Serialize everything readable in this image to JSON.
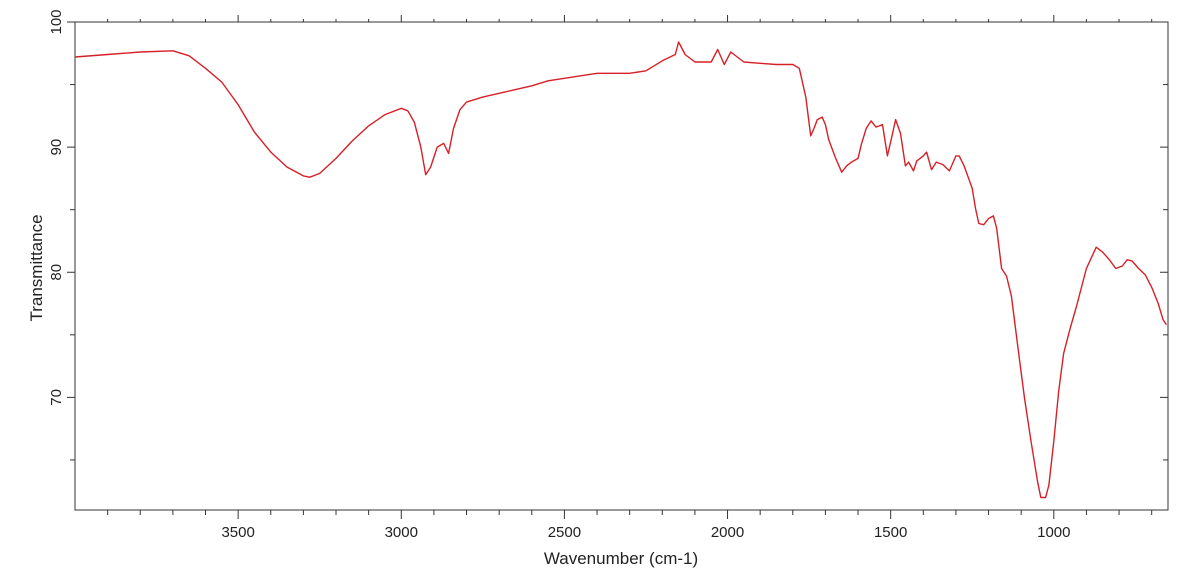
{
  "chart_data": {
    "type": "line",
    "title": "",
    "xlabel": "Wavenumber (cm-1)",
    "ylabel": "Transmittance",
    "x_reversed": true,
    "xlim": [
      4000,
      650
    ],
    "ylim": [
      61,
      100
    ],
    "xticks": [
      3500,
      3000,
      2500,
      2000,
      1500,
      1000
    ],
    "xtick_labels": [
      "3500",
      "3000",
      "2500",
      "2000",
      "1500",
      "1000"
    ],
    "yticks": [
      100,
      90,
      80,
      70
    ],
    "ytick_labels": [
      "100",
      "90",
      "80",
      "70"
    ],
    "grid": false,
    "legend": "none",
    "series": [
      {
        "color": "#d62027",
        "points": [
          [
            4000,
            97.2
          ],
          [
            3900,
            97.4
          ],
          [
            3800,
            97.6
          ],
          [
            3700,
            97.7
          ],
          [
            3650,
            97.3
          ],
          [
            3600,
            96.3
          ],
          [
            3550,
            95.2
          ],
          [
            3500,
            93.4
          ],
          [
            3450,
            91.2
          ],
          [
            3400,
            89.6
          ],
          [
            3350,
            88.4
          ],
          [
            3300,
            87.7
          ],
          [
            3280,
            87.6
          ],
          [
            3250,
            87.9
          ],
          [
            3200,
            89.1
          ],
          [
            3150,
            90.5
          ],
          [
            3100,
            91.7
          ],
          [
            3050,
            92.6
          ],
          [
            3000,
            93.1
          ],
          [
            2980,
            92.9
          ],
          [
            2960,
            92.0
          ],
          [
            2940,
            90.0
          ],
          [
            2925,
            87.8
          ],
          [
            2910,
            88.4
          ],
          [
            2890,
            90.0
          ],
          [
            2870,
            90.3
          ],
          [
            2855,
            89.5
          ],
          [
            2840,
            91.5
          ],
          [
            2820,
            93.0
          ],
          [
            2800,
            93.6
          ],
          [
            2750,
            94.0
          ],
          [
            2700,
            94.3
          ],
          [
            2650,
            94.6
          ],
          [
            2600,
            94.9
          ],
          [
            2550,
            95.3
          ],
          [
            2500,
            95.5
          ],
          [
            2450,
            95.7
          ],
          [
            2400,
            95.9
          ],
          [
            2300,
            95.9
          ],
          [
            2250,
            96.1
          ],
          [
            2200,
            96.9
          ],
          [
            2160,
            97.4
          ],
          [
            2150,
            98.4
          ],
          [
            2130,
            97.4
          ],
          [
            2100,
            96.8
          ],
          [
            2050,
            96.8
          ],
          [
            2030,
            97.8
          ],
          [
            2010,
            96.6
          ],
          [
            2000,
            97.1
          ],
          [
            1990,
            97.6
          ],
          [
            1970,
            97.2
          ],
          [
            1950,
            96.8
          ],
          [
            1900,
            96.7
          ],
          [
            1850,
            96.6
          ],
          [
            1800,
            96.6
          ],
          [
            1780,
            96.3
          ],
          [
            1760,
            94.0
          ],
          [
            1745,
            90.9
          ],
          [
            1735,
            91.5
          ],
          [
            1725,
            92.2
          ],
          [
            1710,
            92.4
          ],
          [
            1700,
            91.8
          ],
          [
            1690,
            90.6
          ],
          [
            1670,
            89.2
          ],
          [
            1650,
            88.0
          ],
          [
            1635,
            88.5
          ],
          [
            1620,
            88.8
          ],
          [
            1600,
            89.1
          ],
          [
            1590,
            90.2
          ],
          [
            1575,
            91.5
          ],
          [
            1560,
            92.1
          ],
          [
            1545,
            91.6
          ],
          [
            1525,
            91.8
          ],
          [
            1510,
            89.3
          ],
          [
            1495,
            91.0
          ],
          [
            1485,
            92.2
          ],
          [
            1470,
            91.1
          ],
          [
            1455,
            88.5
          ],
          [
            1445,
            88.8
          ],
          [
            1430,
            88.1
          ],
          [
            1420,
            88.9
          ],
          [
            1400,
            89.3
          ],
          [
            1390,
            89.6
          ],
          [
            1375,
            88.2
          ],
          [
            1360,
            88.8
          ],
          [
            1340,
            88.6
          ],
          [
            1320,
            88.1
          ],
          [
            1300,
            89.3
          ],
          [
            1290,
            89.3
          ],
          [
            1275,
            88.5
          ],
          [
            1250,
            86.7
          ],
          [
            1240,
            85.1
          ],
          [
            1230,
            83.9
          ],
          [
            1215,
            83.8
          ],
          [
            1200,
            84.3
          ],
          [
            1185,
            84.5
          ],
          [
            1175,
            83.5
          ],
          [
            1160,
            80.3
          ],
          [
            1145,
            79.7
          ],
          [
            1130,
            78.1
          ],
          [
            1110,
            74.0
          ],
          [
            1090,
            70.0
          ],
          [
            1070,
            66.5
          ],
          [
            1050,
            63.3
          ],
          [
            1040,
            62.0
          ],
          [
            1025,
            62.0
          ],
          [
            1015,
            63.0
          ],
          [
            1000,
            66.5
          ],
          [
            985,
            70.5
          ],
          [
            970,
            73.5
          ],
          [
            950,
            75.5
          ],
          [
            930,
            77.3
          ],
          [
            900,
            80.3
          ],
          [
            870,
            82.0
          ],
          [
            850,
            81.6
          ],
          [
            830,
            81.0
          ],
          [
            810,
            80.3
          ],
          [
            790,
            80.5
          ],
          [
            775,
            81.0
          ],
          [
            760,
            80.9
          ],
          [
            740,
            80.3
          ],
          [
            720,
            79.8
          ],
          [
            700,
            78.8
          ],
          [
            680,
            77.5
          ],
          [
            665,
            76.2
          ],
          [
            655,
            75.8
          ]
        ]
      }
    ]
  }
}
